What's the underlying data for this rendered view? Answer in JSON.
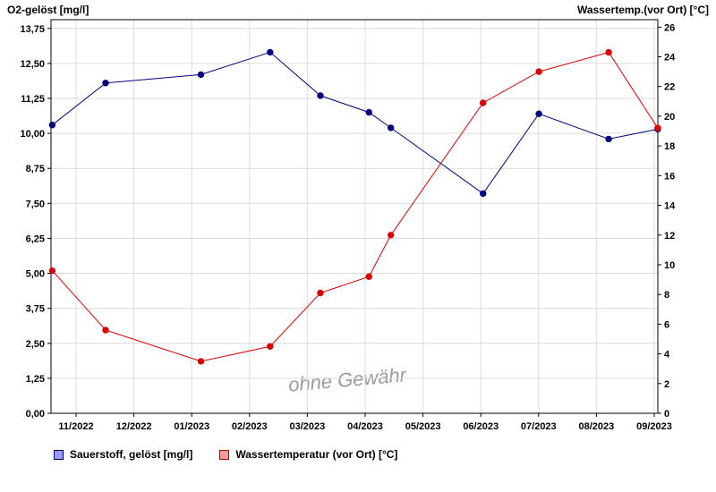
{
  "chart_data": {
    "type": "line",
    "watermark": "ohne Gewähr",
    "x_categories": [
      "11/2022",
      "12/2022",
      "01/2023",
      "02/2023",
      "03/2023",
      "04/2023",
      "05/2023",
      "06/2023",
      "07/2023",
      "08/2023",
      "09/2023"
    ],
    "left_axis": {
      "label": "O2-gelöst [mg/l]",
      "min": 0,
      "max": 13.75,
      "step": 1.25,
      "ticks": [
        "0,00",
        "1,25",
        "2,50",
        "3,75",
        "5,00",
        "6,25",
        "7,50",
        "8,75",
        "10,00",
        "11,25",
        "12,50",
        "13,75"
      ]
    },
    "right_axis": {
      "label": "Wassertemp.(vor Ort) [°C]",
      "min": 0,
      "max": 26,
      "step": 2,
      "ticks": [
        "0",
        "2",
        "4",
        "6",
        "8",
        "10",
        "12",
        "14",
        "16",
        "18",
        "20",
        "22",
        "24",
        "26"
      ]
    },
    "series": [
      {
        "name": "Sauerstoff, gelöst [mg/l]",
        "axis": "left",
        "color": "#000080",
        "swatch_fill": "#9999ff",
        "swatch_border": "#000060",
        "x_frac": [
          0.002,
          0.09,
          0.247,
          0.361,
          0.444,
          0.524,
          0.56,
          0.712,
          0.804,
          0.919,
          1.0
        ],
        "values": [
          10.3,
          11.8,
          12.1,
          12.9,
          11.35,
          10.75,
          10.2,
          7.85,
          10.7,
          9.8,
          10.15
        ]
      },
      {
        "name": "Wassertemperatur (vor Ort) [°C]",
        "axis": "right",
        "color": "#dd0000",
        "swatch_fill": "#ff9999",
        "swatch_border": "#aa0000",
        "x_frac": [
          0.002,
          0.09,
          0.247,
          0.361,
          0.444,
          0.524,
          0.56,
          0.712,
          0.804,
          0.919,
          1.0
        ],
        "values": [
          9.6,
          5.6,
          3.5,
          4.5,
          8.1,
          9.2,
          12.0,
          20.9,
          23.0,
          24.3,
          19.2
        ]
      }
    ]
  }
}
